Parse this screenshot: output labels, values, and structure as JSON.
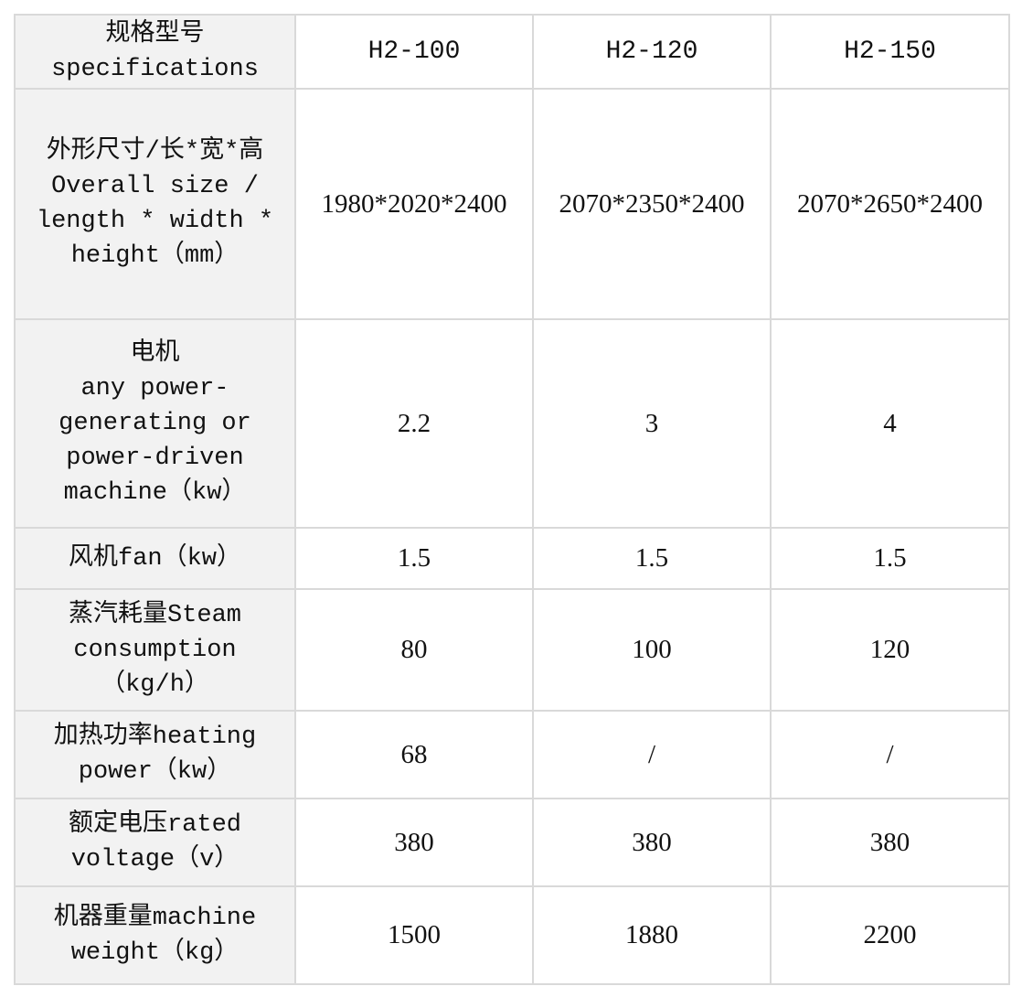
{
  "header": {
    "label": "规格型号\nspecifications",
    "models": [
      "H2-100",
      "H2-120",
      "H2-150"
    ]
  },
  "rows": [
    {
      "label": "外形尺寸/长*宽*高\nOverall size /\nlength * width *\nheight（mm）",
      "values": [
        "1980*2020*2400",
        "2070*2350*2400",
        "2070*2650*2400"
      ]
    },
    {
      "label": "电机\nany power-\ngenerating or\npower-driven\nmachine（kw）",
      "values": [
        "2.2",
        "3",
        "4"
      ]
    },
    {
      "label": "风机fan（kw）",
      "values": [
        "1.5",
        "1.5",
        "1.5"
      ]
    },
    {
      "label": "蒸汽耗量Steam\nconsumption\n（kg/h）",
      "values": [
        "80",
        "100",
        "120"
      ]
    },
    {
      "label": "加热功率heating\npower（kw）",
      "values": [
        "68",
        "/",
        "/"
      ]
    },
    {
      "label": "额定电压rated\nvoltage（v）",
      "values": [
        "380",
        "380",
        "380"
      ]
    },
    {
      "label": "机器重量machine\nweight（kg）",
      "values": [
        "1500",
        "1880",
        "2200"
      ]
    }
  ]
}
